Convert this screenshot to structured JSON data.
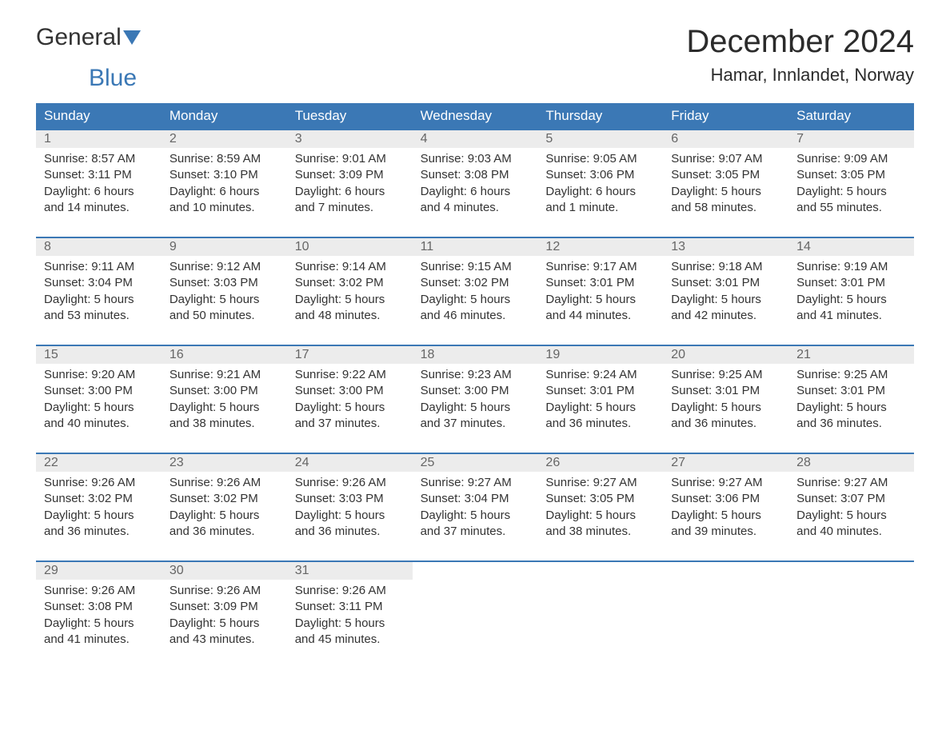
{
  "brand": {
    "part1": "General",
    "part2": "Blue",
    "accent_color": "#3b78b5"
  },
  "header": {
    "title": "December 2024",
    "location": "Hamar, Innlandet, Norway"
  },
  "colors": {
    "header_bg": "#3b78b5",
    "daynum_bg": "#ececec",
    "text": "#333333",
    "muted": "#666666",
    "background": "#ffffff"
  },
  "typography": {
    "month_title_fontsize": 40,
    "location_fontsize": 22,
    "dayhead_fontsize": 17,
    "body_fontsize": 15
  },
  "day_names": [
    "Sunday",
    "Monday",
    "Tuesday",
    "Wednesday",
    "Thursday",
    "Friday",
    "Saturday"
  ],
  "weeks": [
    [
      {
        "day": "1",
        "sunrise": "Sunrise: 8:57 AM",
        "sunset": "Sunset: 3:11 PM",
        "dl1": "Daylight: 6 hours",
        "dl2": "and 14 minutes."
      },
      {
        "day": "2",
        "sunrise": "Sunrise: 8:59 AM",
        "sunset": "Sunset: 3:10 PM",
        "dl1": "Daylight: 6 hours",
        "dl2": "and 10 minutes."
      },
      {
        "day": "3",
        "sunrise": "Sunrise: 9:01 AM",
        "sunset": "Sunset: 3:09 PM",
        "dl1": "Daylight: 6 hours",
        "dl2": "and 7 minutes."
      },
      {
        "day": "4",
        "sunrise": "Sunrise: 9:03 AM",
        "sunset": "Sunset: 3:08 PM",
        "dl1": "Daylight: 6 hours",
        "dl2": "and 4 minutes."
      },
      {
        "day": "5",
        "sunrise": "Sunrise: 9:05 AM",
        "sunset": "Sunset: 3:06 PM",
        "dl1": "Daylight: 6 hours",
        "dl2": "and 1 minute."
      },
      {
        "day": "6",
        "sunrise": "Sunrise: 9:07 AM",
        "sunset": "Sunset: 3:05 PM",
        "dl1": "Daylight: 5 hours",
        "dl2": "and 58 minutes."
      },
      {
        "day": "7",
        "sunrise": "Sunrise: 9:09 AM",
        "sunset": "Sunset: 3:05 PM",
        "dl1": "Daylight: 5 hours",
        "dl2": "and 55 minutes."
      }
    ],
    [
      {
        "day": "8",
        "sunrise": "Sunrise: 9:11 AM",
        "sunset": "Sunset: 3:04 PM",
        "dl1": "Daylight: 5 hours",
        "dl2": "and 53 minutes."
      },
      {
        "day": "9",
        "sunrise": "Sunrise: 9:12 AM",
        "sunset": "Sunset: 3:03 PM",
        "dl1": "Daylight: 5 hours",
        "dl2": "and 50 minutes."
      },
      {
        "day": "10",
        "sunrise": "Sunrise: 9:14 AM",
        "sunset": "Sunset: 3:02 PM",
        "dl1": "Daylight: 5 hours",
        "dl2": "and 48 minutes."
      },
      {
        "day": "11",
        "sunrise": "Sunrise: 9:15 AM",
        "sunset": "Sunset: 3:02 PM",
        "dl1": "Daylight: 5 hours",
        "dl2": "and 46 minutes."
      },
      {
        "day": "12",
        "sunrise": "Sunrise: 9:17 AM",
        "sunset": "Sunset: 3:01 PM",
        "dl1": "Daylight: 5 hours",
        "dl2": "and 44 minutes."
      },
      {
        "day": "13",
        "sunrise": "Sunrise: 9:18 AM",
        "sunset": "Sunset: 3:01 PM",
        "dl1": "Daylight: 5 hours",
        "dl2": "and 42 minutes."
      },
      {
        "day": "14",
        "sunrise": "Sunrise: 9:19 AM",
        "sunset": "Sunset: 3:01 PM",
        "dl1": "Daylight: 5 hours",
        "dl2": "and 41 minutes."
      }
    ],
    [
      {
        "day": "15",
        "sunrise": "Sunrise: 9:20 AM",
        "sunset": "Sunset: 3:00 PM",
        "dl1": "Daylight: 5 hours",
        "dl2": "and 40 minutes."
      },
      {
        "day": "16",
        "sunrise": "Sunrise: 9:21 AM",
        "sunset": "Sunset: 3:00 PM",
        "dl1": "Daylight: 5 hours",
        "dl2": "and 38 minutes."
      },
      {
        "day": "17",
        "sunrise": "Sunrise: 9:22 AM",
        "sunset": "Sunset: 3:00 PM",
        "dl1": "Daylight: 5 hours",
        "dl2": "and 37 minutes."
      },
      {
        "day": "18",
        "sunrise": "Sunrise: 9:23 AM",
        "sunset": "Sunset: 3:00 PM",
        "dl1": "Daylight: 5 hours",
        "dl2": "and 37 minutes."
      },
      {
        "day": "19",
        "sunrise": "Sunrise: 9:24 AM",
        "sunset": "Sunset: 3:01 PM",
        "dl1": "Daylight: 5 hours",
        "dl2": "and 36 minutes."
      },
      {
        "day": "20",
        "sunrise": "Sunrise: 9:25 AM",
        "sunset": "Sunset: 3:01 PM",
        "dl1": "Daylight: 5 hours",
        "dl2": "and 36 minutes."
      },
      {
        "day": "21",
        "sunrise": "Sunrise: 9:25 AM",
        "sunset": "Sunset: 3:01 PM",
        "dl1": "Daylight: 5 hours",
        "dl2": "and 36 minutes."
      }
    ],
    [
      {
        "day": "22",
        "sunrise": "Sunrise: 9:26 AM",
        "sunset": "Sunset: 3:02 PM",
        "dl1": "Daylight: 5 hours",
        "dl2": "and 36 minutes."
      },
      {
        "day": "23",
        "sunrise": "Sunrise: 9:26 AM",
        "sunset": "Sunset: 3:02 PM",
        "dl1": "Daylight: 5 hours",
        "dl2": "and 36 minutes."
      },
      {
        "day": "24",
        "sunrise": "Sunrise: 9:26 AM",
        "sunset": "Sunset: 3:03 PM",
        "dl1": "Daylight: 5 hours",
        "dl2": "and 36 minutes."
      },
      {
        "day": "25",
        "sunrise": "Sunrise: 9:27 AM",
        "sunset": "Sunset: 3:04 PM",
        "dl1": "Daylight: 5 hours",
        "dl2": "and 37 minutes."
      },
      {
        "day": "26",
        "sunrise": "Sunrise: 9:27 AM",
        "sunset": "Sunset: 3:05 PM",
        "dl1": "Daylight: 5 hours",
        "dl2": "and 38 minutes."
      },
      {
        "day": "27",
        "sunrise": "Sunrise: 9:27 AM",
        "sunset": "Sunset: 3:06 PM",
        "dl1": "Daylight: 5 hours",
        "dl2": "and 39 minutes."
      },
      {
        "day": "28",
        "sunrise": "Sunrise: 9:27 AM",
        "sunset": "Sunset: 3:07 PM",
        "dl1": "Daylight: 5 hours",
        "dl2": "and 40 minutes."
      }
    ],
    [
      {
        "day": "29",
        "sunrise": "Sunrise: 9:26 AM",
        "sunset": "Sunset: 3:08 PM",
        "dl1": "Daylight: 5 hours",
        "dl2": "and 41 minutes."
      },
      {
        "day": "30",
        "sunrise": "Sunrise: 9:26 AM",
        "sunset": "Sunset: 3:09 PM",
        "dl1": "Daylight: 5 hours",
        "dl2": "and 43 minutes."
      },
      {
        "day": "31",
        "sunrise": "Sunrise: 9:26 AM",
        "sunset": "Sunset: 3:11 PM",
        "dl1": "Daylight: 5 hours",
        "dl2": "and 45 minutes."
      },
      null,
      null,
      null,
      null
    ]
  ]
}
